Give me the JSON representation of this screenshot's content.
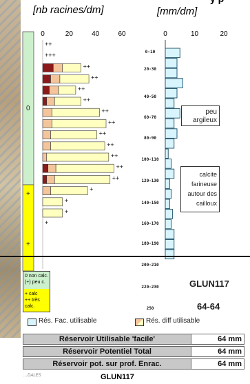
{
  "header": {
    "left_unit": "[nb racines/dm]",
    "right_unit": "[mm/dm]"
  },
  "chart_data": [
    {
      "type": "bar",
      "orientation": "horizontal-stacked",
      "xlabel": "[nb racines/dm]",
      "xlim": [
        0,
        60
      ],
      "xticks": [
        "0",
        "20",
        "40",
        "60"
      ],
      "rows": [
        {
          "dark": 0,
          "light": 0,
          "cream": 0,
          "mark": "++"
        },
        {
          "dark": 0,
          "light": 0,
          "cream": 0,
          "mark": "+++"
        },
        {
          "dark": 8,
          "light": 7,
          "cream": 14,
          "mark": "++"
        },
        {
          "dark": 6,
          "light": 7,
          "cream": 22,
          "mark": "++"
        },
        {
          "dark": 5,
          "light": 7,
          "cream": 13,
          "mark": "++"
        },
        {
          "dark": 3,
          "light": 6,
          "cream": 20,
          "mark": "++"
        },
        {
          "dark": 0,
          "light": 7,
          "cream": 36,
          "mark": "++"
        },
        {
          "dark": 0,
          "light": 7,
          "cream": 41,
          "mark": "++"
        },
        {
          "dark": 0,
          "light": 6,
          "cream": 35,
          "mark": "++"
        },
        {
          "dark": 0,
          "light": 6,
          "cream": 41,
          "mark": "++"
        },
        {
          "dark": 0,
          "light": 3,
          "cream": 47,
          "mark": "++"
        },
        {
          "dark": 4,
          "light": 6,
          "cream": 44,
          "mark": "++"
        },
        {
          "dark": 3,
          "light": 6,
          "cream": 42,
          "mark": "++"
        },
        {
          "dark": 0,
          "light": 6,
          "cream": 28,
          "mark": "+"
        },
        {
          "dark": 0,
          "light": 0,
          "cream": 15,
          "mark": "+"
        },
        {
          "dark": 0,
          "light": 0,
          "cream": 15,
          "mark": "+"
        },
        {
          "dark": 0,
          "light": 0,
          "cream": 0,
          "mark": "+"
        }
      ],
      "calc_legend": [
        "0 non calc.",
        "(+) peu c.",
        "+ calc",
        "++ très calc."
      ],
      "calc_labels": [
        "0",
        "+",
        "+"
      ]
    },
    {
      "type": "bar",
      "orientation": "horizontal",
      "xlabel": "[mm/dm]",
      "xlim": [
        0,
        20
      ],
      "xticks": [
        "0",
        "10",
        "20"
      ],
      "depth_labels": [
        "0-10",
        "20-30",
        "40-50",
        "60-70",
        "80-90",
        "100-110",
        "120-130",
        "140-150",
        "160-170",
        "180-190",
        "200-210",
        "220-230",
        "250"
      ],
      "values": [
        5,
        4,
        4,
        6,
        4,
        3,
        5,
        3,
        4,
        3,
        1,
        2,
        3,
        1.5,
        2,
        1.5,
        2.5,
        2,
        3,
        3,
        3
      ]
    }
  ],
  "annotations": {
    "note1": [
      "peu",
      "argileux"
    ],
    "note2": [
      "calcite",
      "farineuse",
      "autour des",
      "cailloux"
    ],
    "site_code": "GLUN117",
    "value_label": "64-64"
  },
  "legend": {
    "fac": "Rés. Fac. utilisable",
    "diff": "Rés. diff utilisable"
  },
  "table": [
    {
      "label": "Réservoir Utilisable 'facile'",
      "value": "64 mm"
    },
    {
      "label": "Réservoir Potentiel Total",
      "value": "64 mm"
    },
    {
      "label": "Réservoir pot. sur prof. Enrac.",
      "value": "64 mm"
    }
  ],
  "footer": {
    "logo_text": "…DALES",
    "code": "GLUN117"
  },
  "colors": {
    "dark_red": "#8b1a1a",
    "salmon": "#f4c49a",
    "cream": "#ffffc0",
    "cyan": "#d8f4fc",
    "green": "#ccf0cc",
    "yellow": "#ffff00"
  }
}
